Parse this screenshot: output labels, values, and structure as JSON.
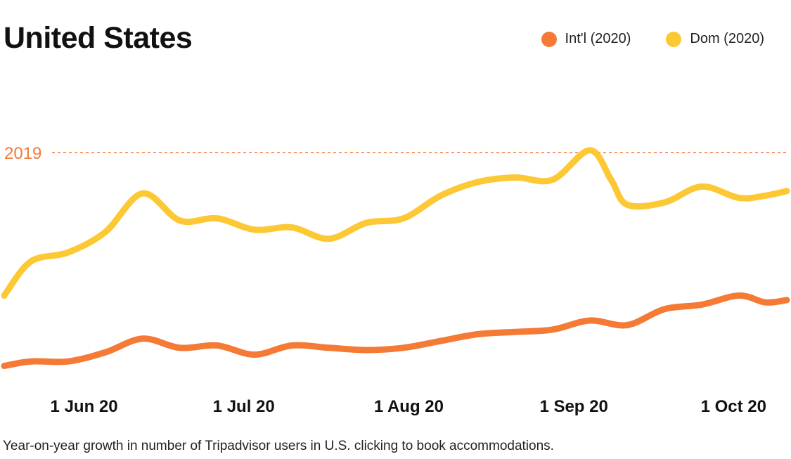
{
  "title": "United States",
  "caption": "Year-on-year growth in number of Tripadvisor users in U.S. clicking to book accommodations.",
  "legend": [
    {
      "label": "Int'l (2020)",
      "color": "#F47A35"
    },
    {
      "label": "Dom (2020)",
      "color": "#FCC934"
    }
  ],
  "chart_data": {
    "type": "line",
    "title": "United States",
    "x_ticks": [
      "1 Jun 20",
      "1 Jul 20",
      "1 Aug 20",
      "1 Sep 20",
      "1 Oct 20"
    ],
    "x_tick_dates": [
      "2020-06-01",
      "2020-07-01",
      "2020-08-01",
      "2020-09-01",
      "2020-10-01"
    ],
    "xlim": [
      "2020-05-17",
      "2020-10-11"
    ],
    "ylim": [
      0,
      130
    ],
    "y_axis_labels": "none",
    "grid": false,
    "legend_position": "top-right",
    "reference_line": {
      "label": "2019",
      "value": 100,
      "color": "#F27A3A",
      "style": "dashed"
    },
    "series": [
      {
        "name": "Int'l (2020)",
        "color": "#F47A35",
        "points": [
          [
            "2020-05-17",
            6
          ],
          [
            "2020-05-22",
            8
          ],
          [
            "2020-05-29",
            8
          ],
          [
            "2020-06-05",
            12
          ],
          [
            "2020-06-12",
            18
          ],
          [
            "2020-06-19",
            14
          ],
          [
            "2020-06-26",
            15
          ],
          [
            "2020-07-03",
            11
          ],
          [
            "2020-07-10",
            15
          ],
          [
            "2020-07-17",
            14
          ],
          [
            "2020-07-24",
            13
          ],
          [
            "2020-07-31",
            14
          ],
          [
            "2020-08-07",
            17
          ],
          [
            "2020-08-14",
            20
          ],
          [
            "2020-08-21",
            21
          ],
          [
            "2020-08-28",
            22
          ],
          [
            "2020-09-04",
            26
          ],
          [
            "2020-09-11",
            24
          ],
          [
            "2020-09-18",
            31
          ],
          [
            "2020-09-25",
            33
          ],
          [
            "2020-10-02",
            37
          ],
          [
            "2020-10-07",
            34
          ],
          [
            "2020-10-11",
            35
          ]
        ]
      },
      {
        "name": "Dom (2020)",
        "color": "#FCC934",
        "points": [
          [
            "2020-05-17",
            37
          ],
          [
            "2020-05-22",
            52
          ],
          [
            "2020-05-29",
            56
          ],
          [
            "2020-06-05",
            65
          ],
          [
            "2020-06-12",
            82
          ],
          [
            "2020-06-19",
            70
          ],
          [
            "2020-06-26",
            71
          ],
          [
            "2020-07-03",
            66
          ],
          [
            "2020-07-10",
            67
          ],
          [
            "2020-07-17",
            62
          ],
          [
            "2020-07-24",
            69
          ],
          [
            "2020-07-31",
            71
          ],
          [
            "2020-08-07",
            81
          ],
          [
            "2020-08-14",
            87
          ],
          [
            "2020-08-21",
            89
          ],
          [
            "2020-08-28",
            88
          ],
          [
            "2020-09-04",
            101
          ],
          [
            "2020-09-08",
            88
          ],
          [
            "2020-09-11",
            77
          ],
          [
            "2020-09-18",
            78
          ],
          [
            "2020-09-25",
            85
          ],
          [
            "2020-10-02",
            80
          ],
          [
            "2020-10-07",
            81
          ],
          [
            "2020-10-11",
            83
          ]
        ]
      }
    ]
  }
}
